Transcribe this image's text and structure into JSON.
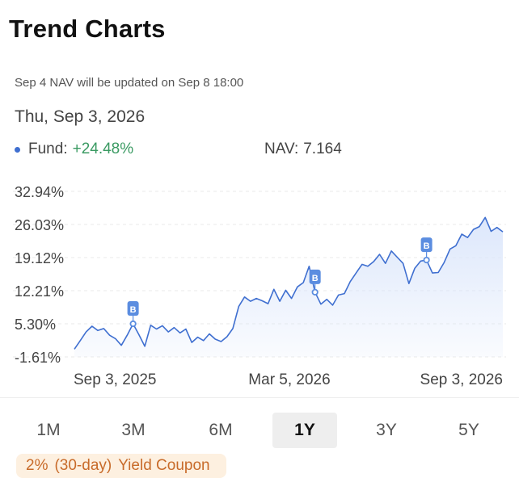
{
  "header": {
    "title": "Trend Charts"
  },
  "notice": "Sep 4 NAV will be updated on Sep 8 18:00",
  "info": {
    "date": "Thu, Sep 3, 2026",
    "fund_label": "Fund:",
    "fund_value": "+24.48%",
    "nav_label": "NAV:",
    "nav_value": "7.164"
  },
  "colors": {
    "line": "#3f6fd0",
    "fill": "#dbe6fb",
    "positive": "#3a9a62",
    "dot": "#3f6fd0",
    "marker": "#5b8de0"
  },
  "chart_data": {
    "type": "area",
    "ylim": [
      -1.61,
      32.94
    ],
    "y_ticks": [
      "32.94%",
      "26.03%",
      "19.12%",
      "12.21%",
      "5.30%",
      "-1.61%"
    ],
    "x_tick_labels": [
      "Sep 3, 2025",
      "Mar 5, 2026",
      "Sep 3, 2026"
    ],
    "x_range": [
      "2025-09-03",
      "2026-09-03"
    ],
    "grid": true,
    "series": [
      {
        "values": [
          0.0,
          1.8,
          3.6,
          4.8,
          3.9,
          4.3,
          2.9,
          2.2,
          0.8,
          2.9,
          5.3,
          3.0,
          0.6,
          5.0,
          4.2,
          4.9,
          3.6,
          4.5,
          3.4,
          4.2,
          1.4,
          2.5,
          1.8,
          3.2,
          2.1,
          1.6,
          2.6,
          4.3,
          8.9,
          10.9,
          10.0,
          10.6,
          10.1,
          9.5,
          12.5,
          10.0,
          12.3,
          10.6,
          13.0,
          13.9,
          17.3,
          11.9,
          9.4,
          10.4,
          9.2,
          11.3,
          11.6,
          14.1,
          15.9,
          17.7,
          17.3,
          18.3,
          19.8,
          17.9,
          20.5,
          19.2,
          17.9,
          13.7,
          16.9,
          18.4,
          18.6,
          15.9,
          16.0,
          18.1,
          20.9,
          21.6,
          24.0,
          23.3,
          25.0,
          25.6,
          27.5,
          24.6,
          25.4,
          24.5
        ],
        "markers": [
          {
            "index": 10,
            "label": "B",
            "value": 5.3
          },
          {
            "index": 41,
            "label": "B",
            "value": 11.9
          },
          {
            "index": 60,
            "label": "B",
            "value": 18.6
          }
        ]
      }
    ]
  },
  "tabs": [
    {
      "label": "1M",
      "active": false
    },
    {
      "label": "3M",
      "active": false
    },
    {
      "label": "6M",
      "active": false
    },
    {
      "label": "1Y",
      "active": true
    },
    {
      "label": "3Y",
      "active": false
    },
    {
      "label": "5Y",
      "active": false
    }
  ],
  "tags": [
    "2%",
    "(30-day)",
    "Yield Coupon"
  ]
}
